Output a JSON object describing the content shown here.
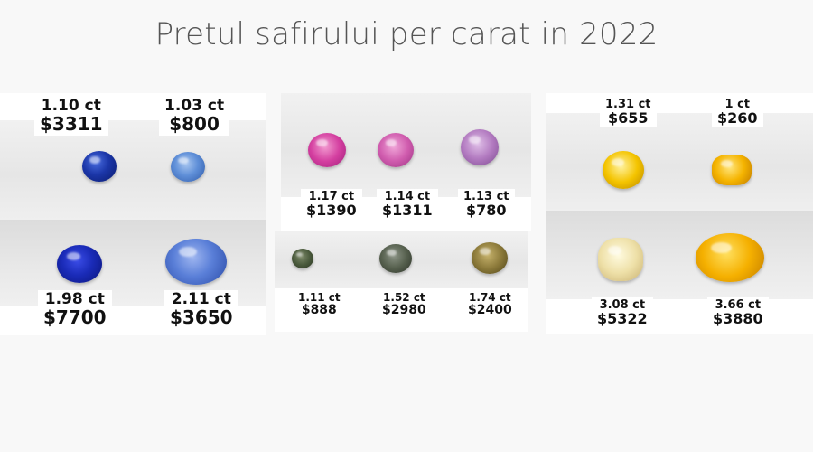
{
  "title": "Pretul safirului per carat in 2022",
  "colors": {
    "blue_dark": "#0b1f8a",
    "blue_light": "#5d8fd6",
    "pink": "#d0409f",
    "violet": "#a973b8",
    "green": "#4a5a3c",
    "olive": "#7a6a2a",
    "yellow": "#f2b100",
    "cream": "#eadfb0"
  },
  "gems": {
    "blue_110": {
      "carat": "1.10 ct",
      "price": "$3311"
    },
    "blue_103": {
      "carat": "1.03 ct",
      "price": "$800"
    },
    "blue_198": {
      "carat": "1.98 ct",
      "price": "$7700"
    },
    "blue_211": {
      "carat": "2.11 ct",
      "price": "$3650"
    },
    "pink_117": {
      "carat": "1.17 ct",
      "price": "$1390"
    },
    "pink_114": {
      "carat": "1.14 ct",
      "price": "$1311"
    },
    "pink_113": {
      "carat": "1.13 ct",
      "price": "$780"
    },
    "green_111": {
      "carat": "1.11 ct",
      "price": "$888"
    },
    "green_152": {
      "carat": "1.52 ct",
      "price": "$2980"
    },
    "green_174": {
      "carat": "1.74 ct",
      "price": "$2400"
    },
    "yellow_131": {
      "carat": "1.31 ct",
      "price": "$655"
    },
    "yellow_1": {
      "carat": "1 ct",
      "price": "$260"
    },
    "yellow_308": {
      "carat": "3.08 ct",
      "price": "$5322"
    },
    "yellow_366": {
      "carat": "3.66 ct",
      "price": "$3880"
    }
  }
}
